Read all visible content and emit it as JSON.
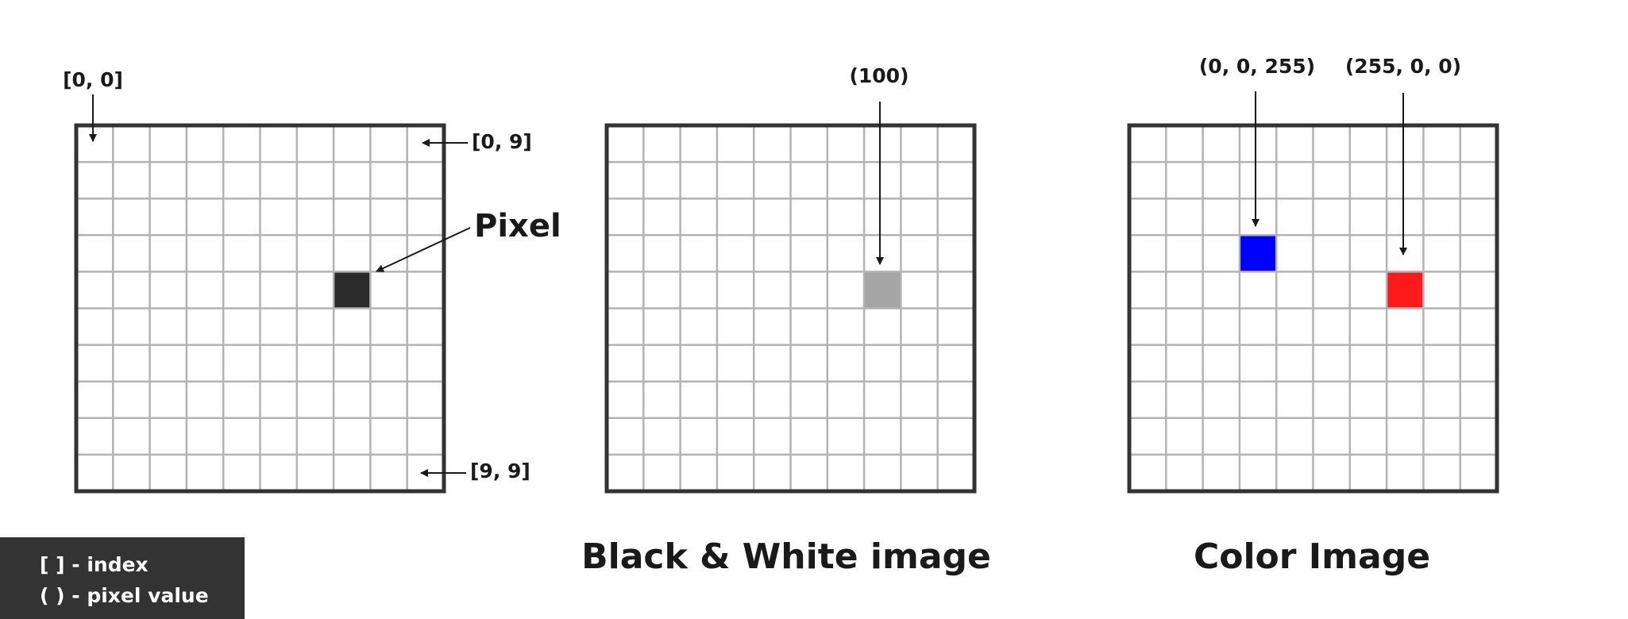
{
  "colors": {
    "grid_line": "#b3b3b3",
    "border": "#333333",
    "pixel_dark": "#2b2b2b",
    "pixel_gray": "#a6a6a6",
    "pixel_blue": "#0000ff",
    "pixel_red": "#ff1a1a",
    "legend_bg": "#333333"
  },
  "grid": {
    "rows": 10,
    "cols": 10
  },
  "panels": [
    {
      "id": "index-grid",
      "caption": "",
      "labels": {
        "top_left": "[0, 0]",
        "top_right": "[0, 9]",
        "bottom_right": "[9, 9]",
        "pixel": "Pixel"
      },
      "highlight": {
        "row": 4,
        "col": 7,
        "color_key": "pixel_dark"
      }
    },
    {
      "id": "bw-grid",
      "caption": "Black & White image",
      "value_label": "(100)",
      "highlight": {
        "row": 4,
        "col": 7,
        "color_key": "pixel_gray"
      }
    },
    {
      "id": "color-grid",
      "caption": "Color Image",
      "blue_label": "(0, 0, 255)",
      "red_label": "(255, 0, 0)",
      "highlights": [
        {
          "row": 3,
          "col": 3,
          "color_key": "pixel_blue"
        },
        {
          "row": 4,
          "col": 7,
          "color_key": "pixel_red"
        }
      ]
    }
  ],
  "legend": {
    "index": "[ ] - index",
    "pixel_value": "( ) - pixel value"
  }
}
